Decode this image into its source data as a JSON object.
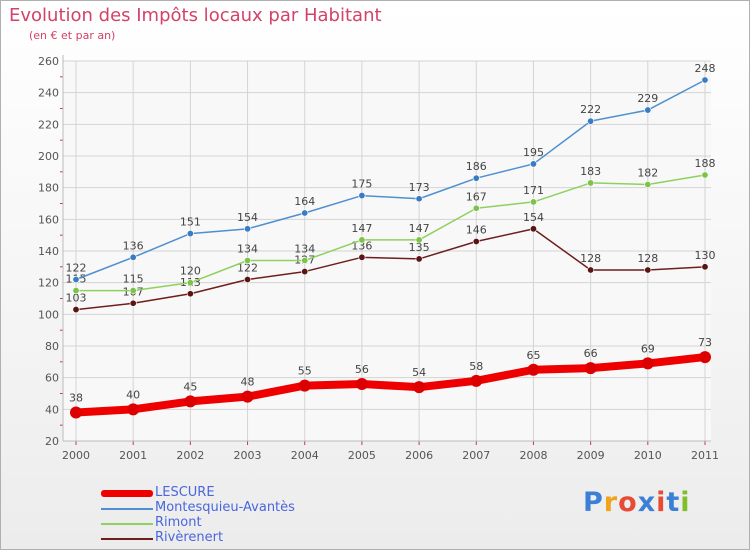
{
  "chart_data": {
    "type": "line",
    "title": "Evolution des Impôts locaux par Habitant",
    "subtitle": "(en € et par an)",
    "x": [
      "2000",
      "2001",
      "2002",
      "2003",
      "2004",
      "2005",
      "2006",
      "2007",
      "2008",
      "2009",
      "2010",
      "2011"
    ],
    "ylim": [
      20,
      260
    ],
    "yticks": [
      20,
      40,
      60,
      80,
      100,
      120,
      140,
      160,
      180,
      200,
      220,
      240,
      260
    ],
    "grid": true,
    "legend_position": "bottom-left",
    "series": [
      {
        "name": "LESCURE",
        "color": "#ee0000",
        "values": [
          38,
          40,
          45,
          48,
          55,
          56,
          54,
          58,
          65,
          66,
          69,
          73
        ]
      },
      {
        "name": "Montesquieu-Avantès",
        "color": "#4f8fcf",
        "values": [
          122,
          136,
          151,
          154,
          164,
          175,
          173,
          186,
          195,
          222,
          229,
          248
        ]
      },
      {
        "name": "Rimont",
        "color": "#8ed15e",
        "values": [
          115,
          115,
          120,
          134,
          134,
          147,
          147,
          167,
          171,
          183,
          182,
          188
        ]
      },
      {
        "name": "Rivèrenert",
        "color": "#6e1e1e",
        "values": [
          103,
          107,
          113,
          122,
          127,
          136,
          135,
          146,
          154,
          128,
          128,
          130
        ]
      }
    ]
  },
  "logo": {
    "letters": [
      "P",
      "r",
      "o",
      "x",
      "i",
      "t",
      "i"
    ]
  }
}
